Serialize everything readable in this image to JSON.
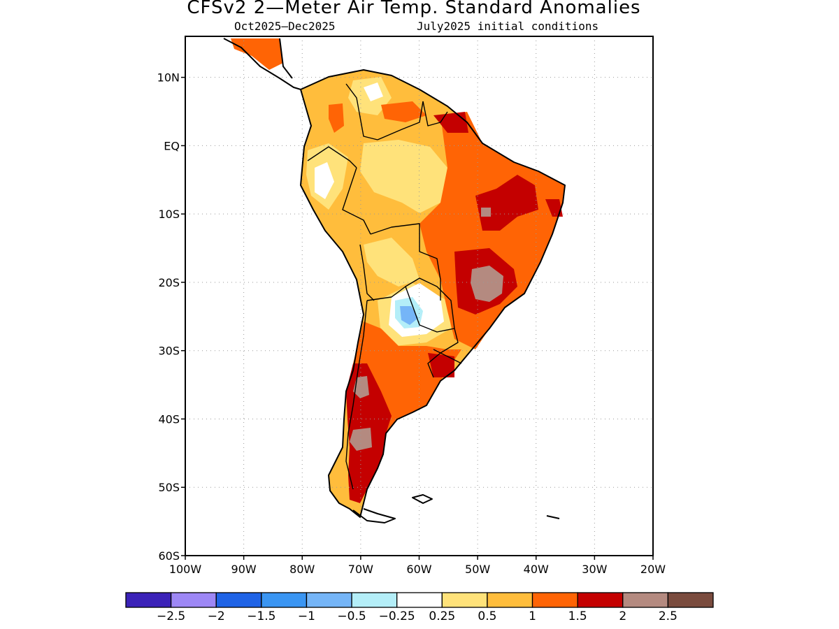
{
  "header": {
    "title": "CFSv2 2—Meter Air Temp. Standard Anomalies",
    "period": "Oct2025—Dec2025",
    "initial_conditions": "July2025 initial conditions"
  },
  "map": {
    "lat_labels": [
      "10N",
      "EQ",
      "10S",
      "20S",
      "30S",
      "40S",
      "50S",
      "60S"
    ],
    "lon_labels": [
      "100W",
      "90W",
      "80W",
      "70W",
      "60W",
      "50W",
      "40W",
      "30W",
      "20W"
    ],
    "lat_range": [
      -60,
      16
    ],
    "lon_range": [
      -100,
      -20
    ]
  },
  "legend": {
    "colors": [
      "#3b22b8",
      "#9d87f5",
      "#1f63e6",
      "#3a95f2",
      "#75b5f7",
      "#b4eef8",
      "#ffffff",
      "#ffe27a",
      "#ffbd3c",
      "#ff6405",
      "#c40000",
      "#b48a80",
      "#7a4b3e"
    ],
    "labels": [
      "−2.5",
      "−2",
      "−1.5",
      "−1",
      "−0.5",
      "−0.25",
      "0.25",
      "0.5",
      "1",
      "1.5",
      "2",
      "2.5"
    ]
  }
}
